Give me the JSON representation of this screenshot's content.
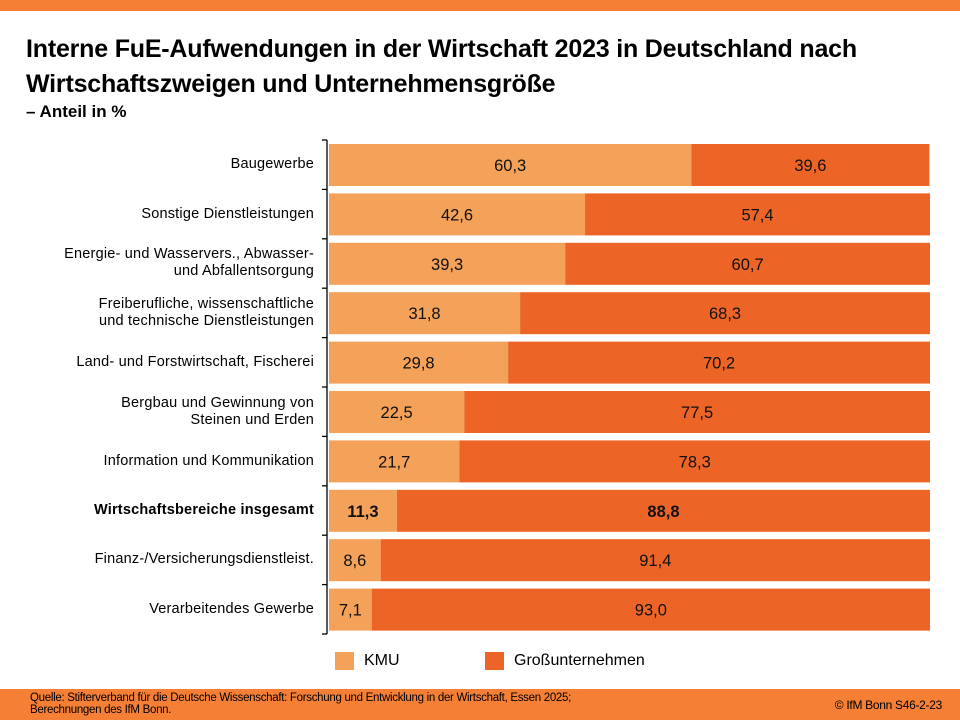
{
  "header": {
    "title": "Interne FuE-Aufwendungen in der Wirtschaft 2023 in Deutschland nach Wirtschaftszweigen und Unternehmensgröße",
    "subtitle": "– Anteil in %"
  },
  "colors": {
    "band": "#F57F35",
    "kmu": "#F4A15A",
    "gross": "#EC6426"
  },
  "legend": {
    "kmu": "KMU",
    "gross": "Großunternehmen"
  },
  "footer": {
    "source_line1": "Quelle: Stifterverband für die Deutsche Wissenschaft: Forschung und Entwicklung in der Wirtschaft, Essen 2025;",
    "source_line2": "Berechnungen des IfM Bonn.",
    "credit": "© IfM Bonn  S46-2-23"
  },
  "chart_data": {
    "type": "bar",
    "orientation": "horizontal",
    "stacked": true,
    "title": "Interne FuE-Aufwendungen in der Wirtschaft 2023 in Deutschland nach Wirtschaftszweigen und Unternehmensgröße",
    "subtitle": "– Anteil in %",
    "xlabel": "",
    "ylabel": "",
    "xlim": [
      0,
      100
    ],
    "grid": false,
    "legend_position": "bottom",
    "categories": [
      "Baugewerbe",
      "Sonstige Dienstleistungen",
      "Energie- und Wasservers., Abwasser- und Abfallentsorgung",
      "Freiberufliche, wissenschaftliche und technische Dienstleistungen",
      "Land- und Forstwirtschaft, Fischerei",
      "Bergbau und Gewinnung von Steinen und Erden",
      "Information und Kommunikation",
      "Wirtschaftsbereiche insgesamt",
      "Finanz-/Versicherungsdienstleist.",
      "Verarbeitendes Gewerbe"
    ],
    "category_lines": [
      [
        "Baugewerbe"
      ],
      [
        "Sonstige Dienstleistungen"
      ],
      [
        "Energie- und Wasservers., Abwasser-",
        "und Abfallentsorgung"
      ],
      [
        "Freiberufliche, wissenschaftliche",
        "und technische Dienstleistungen"
      ],
      [
        "Land- und Forstwirtschaft, Fischerei"
      ],
      [
        "Bergbau und Gewinnung von",
        "Steinen und Erden"
      ],
      [
        "Information und Kommunikation"
      ],
      [
        "Wirtschaftsbereiche insgesamt"
      ],
      [
        "Finanz-/Versicherungsdienstleist."
      ],
      [
        "Verarbeitendes Gewerbe"
      ]
    ],
    "highlight_index": 7,
    "series": [
      {
        "name": "KMU",
        "values": [
          60.3,
          42.6,
          39.3,
          31.8,
          29.8,
          22.5,
          21.7,
          11.3,
          8.6,
          7.1
        ],
        "labels": [
          "60,3",
          "42,6",
          "39,3",
          "31,8",
          "29,8",
          "22,5",
          "21,7",
          "11,3",
          "8,6",
          "7,1"
        ]
      },
      {
        "name": "Großunternehmen",
        "values": [
          39.6,
          57.4,
          60.7,
          68.3,
          70.2,
          77.5,
          78.3,
          88.8,
          91.4,
          93.0
        ],
        "labels": [
          "39,6",
          "57,4",
          "60,7",
          "68,3",
          "70,2",
          "77,5",
          "78,3",
          "88,8",
          "91,4",
          "93,0"
        ]
      }
    ]
  }
}
